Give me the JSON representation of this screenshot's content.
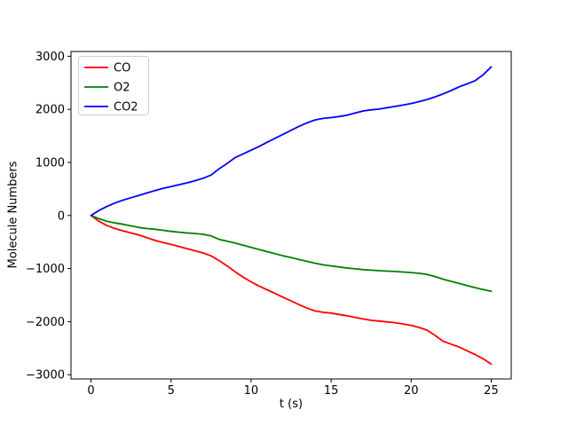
{
  "figure": {
    "background": "#ffffff"
  },
  "chart_data": {
    "type": "line",
    "title": "",
    "xlabel": "t (s)",
    "ylabel": "Molecule Numbers",
    "xlim": [
      -1.25,
      26.25
    ],
    "ylim": [
      -3080,
      3090
    ],
    "xticks": [
      0,
      5,
      10,
      15,
      20,
      25
    ],
    "yticks": [
      -3000,
      -2000,
      -1000,
      0,
      1000,
      2000,
      3000
    ],
    "grid": false,
    "frame_color": "#000000",
    "legend": {
      "position": "upper left",
      "border_color": "#cccccc",
      "background": "#ffffff",
      "labels": [
        "CO",
        "O2",
        "CO2"
      ]
    },
    "x": [
      0,
      0.5,
      1,
      1.5,
      2,
      2.5,
      3,
      3.5,
      4,
      4.5,
      5,
      5.5,
      6,
      6.5,
      7,
      7.5,
      8,
      8.5,
      9,
      9.5,
      10,
      10.5,
      11,
      11.5,
      12,
      12.5,
      13,
      13.5,
      14,
      14.5,
      15,
      15.5,
      16,
      16.5,
      17,
      17.5,
      18,
      18.5,
      19,
      19.5,
      20,
      20.5,
      21,
      21.5,
      22,
      22.5,
      23,
      23.5,
      24,
      24.5,
      25
    ],
    "series": [
      {
        "name": "CO",
        "color": "#ff0000",
        "values": [
          0,
          -110,
          -190,
          -245,
          -290,
          -330,
          -370,
          -420,
          -470,
          -510,
          -545,
          -585,
          -625,
          -665,
          -705,
          -760,
          -850,
          -950,
          -1060,
          -1160,
          -1250,
          -1330,
          -1400,
          -1470,
          -1540,
          -1610,
          -1680,
          -1745,
          -1800,
          -1825,
          -1840,
          -1865,
          -1890,
          -1920,
          -1950,
          -1975,
          -1990,
          -2005,
          -2020,
          -2045,
          -2070,
          -2110,
          -2160,
          -2260,
          -2370,
          -2425,
          -2480,
          -2550,
          -2620,
          -2700,
          -2800
        ]
      },
      {
        "name": "O2",
        "color": "#008000",
        "values": [
          0,
          -60,
          -110,
          -140,
          -165,
          -195,
          -225,
          -245,
          -260,
          -280,
          -300,
          -315,
          -330,
          -340,
          -355,
          -385,
          -450,
          -485,
          -520,
          -560,
          -600,
          -640,
          -680,
          -720,
          -760,
          -795,
          -830,
          -865,
          -900,
          -930,
          -950,
          -970,
          -990,
          -1005,
          -1020,
          -1030,
          -1040,
          -1048,
          -1055,
          -1065,
          -1075,
          -1090,
          -1110,
          -1150,
          -1200,
          -1240,
          -1280,
          -1320,
          -1360,
          -1395,
          -1430
        ]
      },
      {
        "name": "CO2",
        "color": "#0000ff",
        "values": [
          0,
          95,
          170,
          235,
          290,
          335,
          380,
          425,
          470,
          510,
          545,
          580,
          615,
          655,
          700,
          760,
          880,
          980,
          1090,
          1160,
          1230,
          1300,
          1380,
          1455,
          1530,
          1605,
          1680,
          1745,
          1800,
          1830,
          1845,
          1865,
          1890,
          1930,
          1970,
          1990,
          2005,
          2030,
          2055,
          2080,
          2110,
          2145,
          2185,
          2235,
          2290,
          2355,
          2425,
          2480,
          2540,
          2650,
          2800
        ]
      }
    ]
  }
}
